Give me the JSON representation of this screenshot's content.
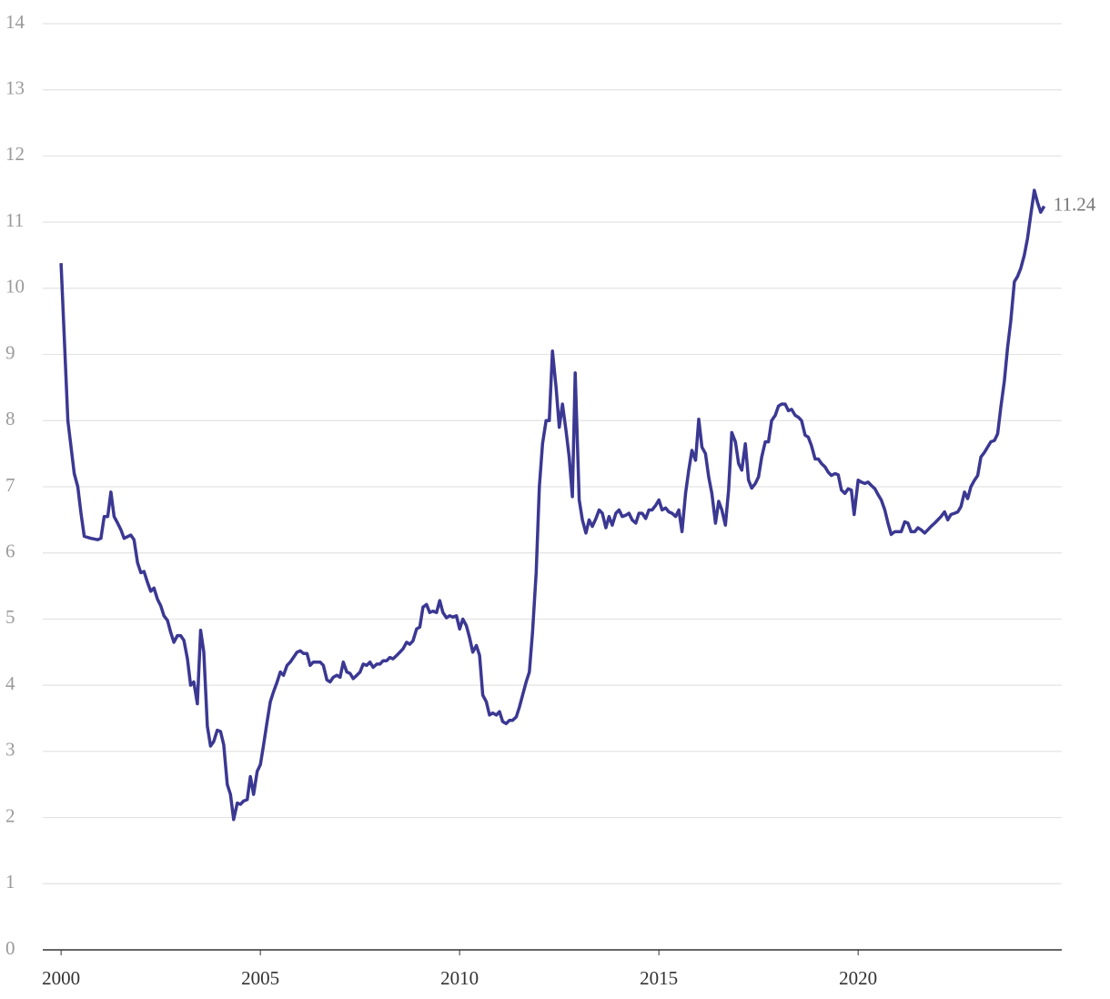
{
  "chart_data": {
    "type": "line",
    "x": [
      2000.0,
      2000.17,
      2000.33,
      2000.42,
      2000.5,
      2000.58,
      2000.75,
      2000.92,
      2001.0,
      2001.08,
      2001.17,
      2001.25,
      2001.33,
      2001.42,
      2001.5,
      2001.58,
      2001.75,
      2001.83,
      2001.92,
      2002.0,
      2002.08,
      2002.17,
      2002.25,
      2002.33,
      2002.42,
      2002.5,
      2002.58,
      2002.67,
      2002.75,
      2002.83,
      2002.92,
      2003.0,
      2003.08,
      2003.17,
      2003.25,
      2003.33,
      2003.42,
      2003.5,
      2003.58,
      2003.67,
      2003.75,
      2003.83,
      2003.92,
      2004.0,
      2004.08,
      2004.17,
      2004.25,
      2004.33,
      2004.42,
      2004.5,
      2004.58,
      2004.67,
      2004.75,
      2004.83,
      2004.92,
      2005.0,
      2005.08,
      2005.17,
      2005.25,
      2005.33,
      2005.42,
      2005.5,
      2005.58,
      2005.67,
      2005.75,
      2005.83,
      2005.92,
      2006.0,
      2006.08,
      2006.17,
      2006.25,
      2006.33,
      2006.42,
      2006.5,
      2006.58,
      2006.67,
      2006.75,
      2006.83,
      2006.92,
      2007.0,
      2007.08,
      2007.17,
      2007.25,
      2007.33,
      2007.42,
      2007.5,
      2007.58,
      2007.67,
      2007.75,
      2007.83,
      2007.92,
      2008.0,
      2008.08,
      2008.17,
      2008.25,
      2008.33,
      2008.42,
      2008.5,
      2008.58,
      2008.67,
      2008.75,
      2008.83,
      2008.92,
      2009.0,
      2009.08,
      2009.17,
      2009.25,
      2009.33,
      2009.42,
      2009.5,
      2009.58,
      2009.67,
      2009.75,
      2009.83,
      2009.92,
      2010.0,
      2010.08,
      2010.17,
      2010.25,
      2010.33,
      2010.42,
      2010.5,
      2010.58,
      2010.67,
      2010.75,
      2010.83,
      2010.92,
      2011.0,
      2011.08,
      2011.17,
      2011.25,
      2011.33,
      2011.42,
      2011.5,
      2011.58,
      2011.67,
      2011.75,
      2011.83,
      2011.92,
      2012.0,
      2012.08,
      2012.17,
      2012.25,
      2012.33,
      2012.42,
      2012.5,
      2012.58,
      2012.67,
      2012.75,
      2012.83,
      2012.9,
      2013.0,
      2013.08,
      2013.17,
      2013.25,
      2013.33,
      2013.42,
      2013.5,
      2013.58,
      2013.67,
      2013.75,
      2013.83,
      2013.92,
      2014.0,
      2014.08,
      2014.17,
      2014.25,
      2014.33,
      2014.42,
      2014.5,
      2014.58,
      2014.67,
      2014.75,
      2014.83,
      2014.92,
      2015.0,
      2015.08,
      2015.17,
      2015.25,
      2015.33,
      2015.42,
      2015.5,
      2015.58,
      2015.67,
      2015.75,
      2015.83,
      2015.92,
      2016.0,
      2016.08,
      2016.17,
      2016.25,
      2016.33,
      2016.42,
      2016.5,
      2016.58,
      2016.67,
      2016.75,
      2016.83,
      2016.92,
      2017.0,
      2017.08,
      2017.17,
      2017.25,
      2017.33,
      2017.42,
      2017.5,
      2017.58,
      2017.67,
      2017.75,
      2017.83,
      2017.92,
      2018.0,
      2018.08,
      2018.17,
      2018.25,
      2018.33,
      2018.42,
      2018.5,
      2018.58,
      2018.67,
      2018.75,
      2018.83,
      2018.92,
      2019.0,
      2019.08,
      2019.17,
      2019.25,
      2019.33,
      2019.42,
      2019.5,
      2019.58,
      2019.67,
      2019.75,
      2019.83,
      2019.9,
      2020.0,
      2020.08,
      2020.17,
      2020.25,
      2020.33,
      2020.42,
      2020.5,
      2020.58,
      2020.67,
      2020.75,
      2020.83,
      2020.92,
      2021.0,
      2021.08,
      2021.17,
      2021.25,
      2021.33,
      2021.42,
      2021.5,
      2021.58,
      2021.67,
      2021.75,
      2021.83,
      2021.92,
      2022.0,
      2022.08,
      2022.17,
      2022.25,
      2022.33,
      2022.42,
      2022.5,
      2022.58,
      2022.67,
      2022.75,
      2022.83,
      2022.92,
      2023.0,
      2023.08,
      2023.17,
      2023.25,
      2023.33,
      2023.42,
      2023.5,
      2023.58,
      2023.67,
      2023.75,
      2023.83,
      2023.92,
      2024.0,
      2024.08,
      2024.17,
      2024.25,
      2024.33,
      2024.42,
      2024.5,
      2024.58,
      2024.67
    ],
    "series": [
      {
        "color": "#3b3893",
        "values": [
          10.38,
          8.0,
          7.2,
          7.0,
          6.6,
          6.25,
          6.22,
          6.2,
          6.22,
          6.55,
          6.55,
          6.92,
          6.55,
          6.45,
          6.35,
          6.22,
          6.27,
          6.2,
          5.85,
          5.7,
          5.72,
          5.55,
          5.42,
          5.47,
          5.3,
          5.2,
          5.05,
          4.98,
          4.8,
          4.65,
          4.75,
          4.75,
          4.68,
          4.4,
          4.0,
          4.05,
          3.72,
          4.83,
          4.5,
          3.38,
          3.08,
          3.15,
          3.32,
          3.3,
          3.1,
          2.5,
          2.35,
          1.97,
          2.22,
          2.2,
          2.25,
          2.27,
          2.62,
          2.35,
          2.7,
          2.8,
          3.1,
          3.45,
          3.75,
          3.9,
          4.05,
          4.2,
          4.15,
          4.3,
          4.35,
          4.42,
          4.5,
          4.52,
          4.48,
          4.48,
          4.3,
          4.35,
          4.35,
          4.35,
          4.3,
          4.08,
          4.05,
          4.12,
          4.15,
          4.12,
          4.35,
          4.2,
          4.18,
          4.1,
          4.15,
          4.2,
          4.32,
          4.3,
          4.35,
          4.27,
          4.32,
          4.32,
          4.37,
          4.37,
          4.42,
          4.4,
          4.45,
          4.5,
          4.55,
          4.65,
          4.62,
          4.67,
          4.85,
          4.88,
          5.18,
          5.22,
          5.1,
          5.12,
          5.1,
          5.28,
          5.1,
          5.02,
          5.05,
          5.03,
          5.05,
          4.85,
          5.0,
          4.9,
          4.72,
          4.5,
          4.6,
          4.45,
          3.85,
          3.75,
          3.55,
          3.58,
          3.55,
          3.6,
          3.45,
          3.42,
          3.47,
          3.47,
          3.52,
          3.67,
          3.85,
          4.05,
          4.2,
          4.8,
          5.7,
          7.0,
          7.65,
          8.0,
          8.0,
          9.05,
          8.5,
          7.9,
          8.25,
          7.85,
          7.45,
          6.85,
          8.72,
          6.8,
          6.5,
          6.3,
          6.5,
          6.4,
          6.52,
          6.65,
          6.6,
          6.38,
          6.55,
          6.42,
          6.6,
          6.65,
          6.55,
          6.57,
          6.6,
          6.5,
          6.45,
          6.6,
          6.6,
          6.52,
          6.65,
          6.65,
          6.72,
          6.8,
          6.65,
          6.68,
          6.62,
          6.6,
          6.55,
          6.65,
          6.32,
          6.9,
          7.25,
          7.55,
          7.4,
          8.02,
          7.6,
          7.5,
          7.15,
          6.9,
          6.45,
          6.78,
          6.65,
          6.42,
          6.95,
          7.82,
          7.68,
          7.35,
          7.25,
          7.65,
          7.1,
          6.98,
          7.05,
          7.15,
          7.45,
          7.68,
          7.68,
          8.0,
          8.08,
          8.22,
          8.25,
          8.25,
          8.15,
          8.17,
          8.08,
          8.05,
          8.0,
          7.78,
          7.75,
          7.62,
          7.42,
          7.42,
          7.35,
          7.3,
          7.22,
          7.17,
          7.2,
          7.18,
          6.95,
          6.9,
          6.97,
          6.95,
          6.58,
          7.1,
          7.07,
          7.05,
          7.07,
          7.02,
          6.97,
          6.88,
          6.8,
          6.65,
          6.45,
          6.28,
          6.32,
          6.32,
          6.32,
          6.47,
          6.45,
          6.32,
          6.32,
          6.38,
          6.35,
          6.3,
          6.35,
          6.4,
          6.45,
          6.5,
          6.55,
          6.62,
          6.5,
          6.58,
          6.6,
          6.62,
          6.7,
          6.92,
          6.82,
          7.0,
          7.1,
          7.17,
          7.45,
          7.52,
          7.6,
          7.68,
          7.7,
          7.8,
          8.2,
          8.6,
          9.1,
          9.5,
          10.1,
          10.18,
          10.3,
          10.5,
          10.75,
          11.1,
          11.48,
          11.3,
          11.15,
          11.24
        ]
      }
    ],
    "xlim": [
      1999.54,
      2025.11
    ],
    "xticks": [
      2000,
      2005,
      2010,
      2015,
      2020
    ],
    "ylim": [
      0,
      14
    ],
    "yticks": [
      0,
      1,
      2,
      3,
      4,
      5,
      6,
      7,
      8,
      9,
      10,
      11,
      12,
      13,
      14
    ],
    "grid": true
  }
}
